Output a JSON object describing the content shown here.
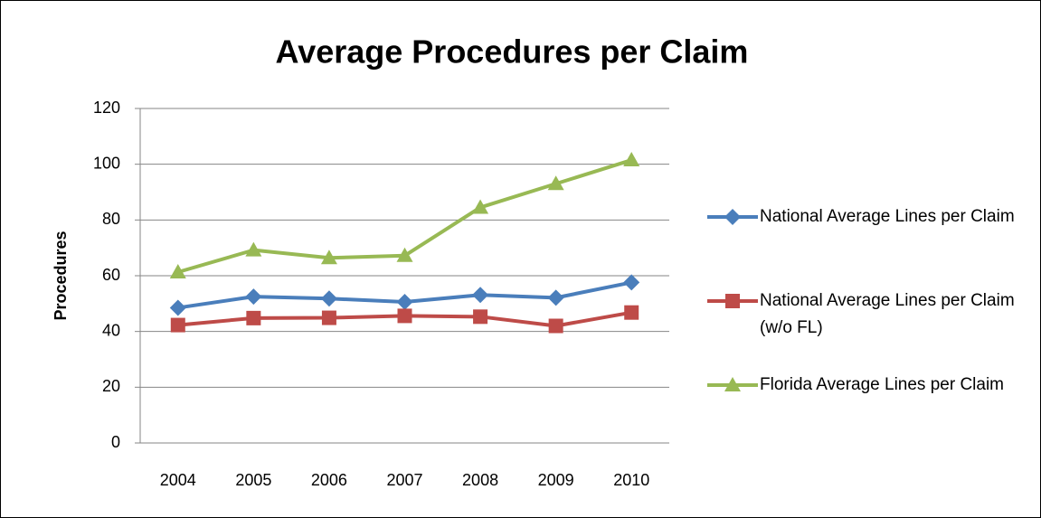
{
  "chart_data": {
    "type": "line",
    "title": "Average Procedures per Claim",
    "ylabel": "Procedures",
    "categories": [
      "2004",
      "2005",
      "2006",
      "2007",
      "2008",
      "2009",
      "2010"
    ],
    "series": [
      {
        "name": "National Average Lines per Claim",
        "color": "#4a7ebb",
        "marker": "diamond",
        "values": [
          48.5,
          52.5,
          51.8,
          50.6,
          53.1,
          52.1,
          57.6
        ]
      },
      {
        "name": "National Average Lines per Claim (w/o FL)",
        "color": "#be4b48",
        "marker": "square",
        "values": [
          42.3,
          44.8,
          44.9,
          45.6,
          45.3,
          42.0,
          46.8
        ]
      },
      {
        "name": "Florida Average Lines per Claim",
        "color": "#98b954",
        "marker": "triangle",
        "values": [
          61.3,
          69.2,
          66.4,
          67.2,
          84.5,
          93.0,
          101.5
        ]
      }
    ],
    "ylim": [
      0,
      120
    ],
    "yticks": [
      0,
      20,
      40,
      60,
      80,
      100,
      120
    ],
    "grid": true,
    "legend": "right"
  }
}
